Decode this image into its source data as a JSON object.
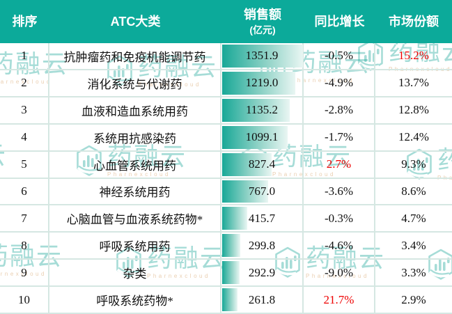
{
  "header": {
    "rank": "排序",
    "category": "ATC大类",
    "sales": "销售额",
    "sales_unit": "(亿元)",
    "growth": "同比增长",
    "share": "市场份额"
  },
  "bar_max": 1351.9,
  "rows": [
    {
      "rank": "1",
      "category": "抗肿瘤药和免疫机能调节药",
      "sales": "1351.9",
      "sales_value": 1351.9,
      "growth": "-0.5%",
      "share": "15.2%",
      "share_red": true
    },
    {
      "rank": "2",
      "category": "消化系统与代谢药",
      "sales": "1219.0",
      "sales_value": 1219.0,
      "growth": "-4.9%",
      "share": "13.7%"
    },
    {
      "rank": "3",
      "category": "血液和造血系统用药",
      "sales": "1135.2",
      "sales_value": 1135.2,
      "growth": "-2.8%",
      "share": "12.8%"
    },
    {
      "rank": "4",
      "category": "系统用抗感染药",
      "sales": "1099.1",
      "sales_value": 1099.1,
      "growth": "-1.7%",
      "share": "12.4%"
    },
    {
      "rank": "5",
      "category": "心血管系统用药",
      "sales": "827.4",
      "sales_value": 827.4,
      "growth": "2.7%",
      "share": "9.3%",
      "growth_red": true
    },
    {
      "rank": "6",
      "category": "神经系统用药",
      "sales": "767.0",
      "sales_value": 767.0,
      "growth": "-3.6%",
      "share": "8.6%"
    },
    {
      "rank": "7",
      "category": "心脑血管与血液系统药物*",
      "sales": "415.7",
      "sales_value": 415.7,
      "growth": "-0.3%",
      "share": "4.7%"
    },
    {
      "rank": "8",
      "category": "呼吸系统用药",
      "sales": "299.8",
      "sales_value": 299.8,
      "growth": "-4.6%",
      "share": "3.4%"
    },
    {
      "rank": "9",
      "category": "杂类",
      "sales": "292.9",
      "sales_value": 292.9,
      "growth": "-9.0%",
      "share": "3.3%"
    },
    {
      "rank": "10",
      "category": "呼吸系统药物*",
      "sales": "261.8",
      "sales_value": 261.8,
      "growth": "21.7%",
      "share": "2.9%",
      "growth_red": true
    }
  ],
  "watermark": {
    "brand": "药融云",
    "subbrand": "Pharnexcloud"
  },
  "colors": {
    "header_bg": "#0caa9a",
    "bar_gradient_start": "#18a897",
    "bar_gradient_end": "#e9f6f3",
    "grid_line": "#d5e7e2",
    "highlight_red": "#ee0000",
    "watermark_teal": "#17a697",
    "watermark_tan": "#c77e2e"
  },
  "chart_data": {
    "type": "table",
    "title": "ATC大类销售额排名",
    "columns": [
      "排序",
      "ATC大类",
      "销售额(亿元)",
      "同比增长",
      "市场份额"
    ],
    "rows": [
      [
        1,
        "抗肿瘤药和免疫机能调节药",
        1351.9,
        "-0.5%",
        "15.2%"
      ],
      [
        2,
        "消化系统与代谢药",
        1219.0,
        "-4.9%",
        "13.7%"
      ],
      [
        3,
        "血液和造血系统用药",
        1135.2,
        "-2.8%",
        "12.8%"
      ],
      [
        4,
        "系统用抗感染药",
        1099.1,
        "-1.7%",
        "12.4%"
      ],
      [
        5,
        "心血管系统用药",
        827.4,
        "2.7%",
        "9.3%"
      ],
      [
        6,
        "神经系统用药",
        767.0,
        "-3.6%",
        "8.6%"
      ],
      [
        7,
        "心脑血管与血液系统药物*",
        415.7,
        "-0.3%",
        "4.7%"
      ],
      [
        8,
        "呼吸系统用药",
        299.8,
        "-4.6%",
        "3.4%"
      ],
      [
        9,
        "杂类",
        292.9,
        "-9.0%",
        "3.3%"
      ],
      [
        10,
        "呼吸系统药物*",
        261.8,
        "21.7%",
        "2.9%"
      ]
    ],
    "embedded_bars": {
      "column": "销售额(亿元)",
      "values": [
        1351.9,
        1219.0,
        1135.2,
        1099.1,
        827.4,
        767.0,
        415.7,
        299.8,
        292.9,
        261.8
      ],
      "max": 1351.9
    },
    "red_highlighted_cells": [
      {
        "row": 1,
        "column": "市场份额",
        "value": "15.2%"
      },
      {
        "row": 5,
        "column": "同比增长",
        "value": "2.7%"
      },
      {
        "row": 10,
        "column": "同比增长",
        "value": "21.7%"
      }
    ],
    "legend_position": "none",
    "grid": true
  }
}
